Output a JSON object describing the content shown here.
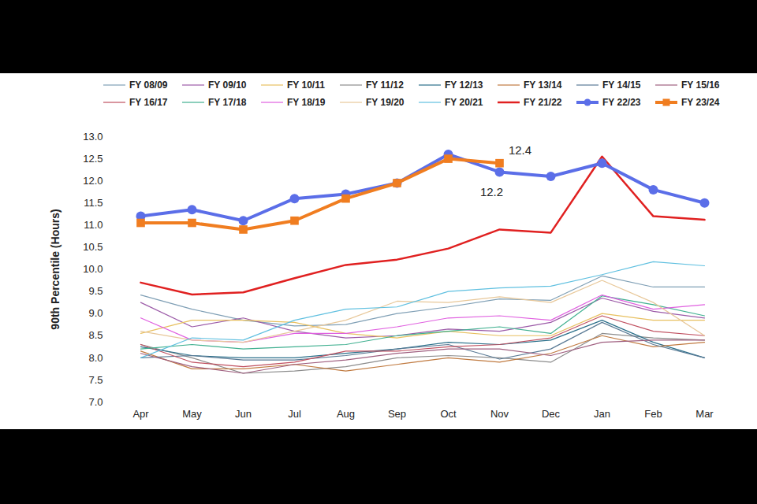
{
  "chart_data": {
    "type": "line",
    "y_label": "90th Percentile (Hours)",
    "categories": [
      "Apr",
      "May",
      "Jun",
      "Jul",
      "Aug",
      "Sep",
      "Oct",
      "Nov",
      "Dec",
      "Jan",
      "Feb",
      "Mar"
    ],
    "ylim": [
      7.0,
      13.0
    ],
    "yticks": [
      {
        "value": 7.0,
        "label": "7.0"
      },
      {
        "value": 7.5,
        "label": "7.5"
      },
      {
        "value": 8.0,
        "label": "8.0"
      },
      {
        "value": 8.5,
        "label": "8.5"
      },
      {
        "value": 9.0,
        "label": "9.0"
      },
      {
        "value": 9.5,
        "label": "9.5"
      },
      {
        "value": 10.0,
        "label": "10.0"
      },
      {
        "value": 10.5,
        "label": "10.5"
      },
      {
        "value": 11.0,
        "label": "11.0"
      },
      {
        "value": 11.5,
        "label": "11.5"
      },
      {
        "value": 12.0,
        "label": "12.0"
      },
      {
        "value": 12.5,
        "label": "12.5"
      },
      {
        "value": 13.0,
        "label": "13.0"
      }
    ],
    "grid": false,
    "legend": "top",
    "series": [
      {
        "name": "FY 08/09",
        "color": "#7f9fb5",
        "line_style": "solid",
        "values": [
          9.42,
          9.1,
          8.85,
          8.72,
          8.75,
          9.0,
          9.15,
          9.33,
          9.3,
          9.85,
          9.6,
          9.6
        ]
      },
      {
        "name": "FY 09/10",
        "color": "#9c5ba8",
        "line_style": "solid",
        "values": [
          9.25,
          8.7,
          8.9,
          8.6,
          8.45,
          8.5,
          8.65,
          8.6,
          8.8,
          9.35,
          9.05,
          8.9
        ]
      },
      {
        "name": "FY 10/11",
        "color": "#e8c060",
        "line_style": "solid",
        "values": [
          8.55,
          8.85,
          8.85,
          8.8,
          8.55,
          8.45,
          8.6,
          8.5,
          8.5,
          9.0,
          8.85,
          8.85
        ]
      },
      {
        "name": "FY 11/12",
        "color": "#8c8c8c",
        "line_style": "solid",
        "values": [
          8.3,
          8.0,
          7.65,
          7.7,
          7.8,
          8.0,
          8.05,
          8.0,
          7.9,
          8.55,
          8.45,
          8.4
        ]
      },
      {
        "name": "FY 12/13",
        "color": "#2a6f8a",
        "line_style": "solid",
        "values": [
          8.25,
          8.05,
          8.0,
          8.0,
          8.1,
          8.2,
          8.35,
          8.3,
          8.4,
          8.85,
          8.35,
          8.0
        ]
      },
      {
        "name": "FY 13/14",
        "color": "#c07a40",
        "line_style": "solid",
        "values": [
          8.15,
          7.75,
          7.75,
          7.85,
          7.7,
          7.85,
          8.0,
          7.9,
          8.1,
          8.5,
          8.25,
          8.35
        ]
      },
      {
        "name": "FY 14/15",
        "color": "#5a7a95",
        "line_style": "solid",
        "values": [
          8.0,
          8.05,
          7.95,
          7.95,
          8.05,
          8.2,
          8.3,
          7.97,
          8.2,
          8.8,
          8.3,
          8.0
        ]
      },
      {
        "name": "FY 15/16",
        "color": "#a06080",
        "line_style": "solid",
        "values": [
          8.1,
          7.8,
          7.65,
          7.85,
          7.95,
          8.1,
          8.2,
          8.2,
          8.05,
          8.35,
          8.4,
          8.4
        ]
      },
      {
        "name": "FY 16/17",
        "color": "#c05060",
        "line_style": "solid",
        "values": [
          8.3,
          7.9,
          7.8,
          7.9,
          8.15,
          8.15,
          8.25,
          8.3,
          8.45,
          8.95,
          8.6,
          8.5
        ]
      },
      {
        "name": "FY 17/18",
        "color": "#40b090",
        "line_style": "solid",
        "values": [
          8.2,
          8.3,
          8.2,
          8.25,
          8.3,
          8.5,
          8.6,
          8.7,
          8.55,
          9.4,
          9.2,
          8.95
        ]
      },
      {
        "name": "FY 18/19",
        "color": "#e060e0",
        "line_style": "solid",
        "values": [
          8.9,
          8.4,
          8.35,
          8.55,
          8.55,
          8.7,
          8.9,
          8.95,
          8.85,
          9.42,
          9.1,
          9.2
        ]
      },
      {
        "name": "FY 19/20",
        "color": "#e8c89a",
        "line_style": "solid",
        "values": [
          8.6,
          8.4,
          8.35,
          8.6,
          8.85,
          9.28,
          9.25,
          9.38,
          9.25,
          9.75,
          9.25,
          8.5
        ]
      },
      {
        "name": "FY 20/21",
        "color": "#60c0e0",
        "line_style": "solid",
        "values": [
          8.0,
          8.45,
          8.4,
          8.85,
          9.1,
          9.15,
          9.5,
          9.58,
          9.62,
          9.88,
          10.17,
          10.08
        ]
      },
      {
        "name": "FY 21/22",
        "color": "#e02020",
        "line_style": "thick",
        "values": [
          9.7,
          9.43,
          9.48,
          9.8,
          10.1,
          10.22,
          10.47,
          10.9,
          10.83,
          12.55,
          11.2,
          11.12
        ]
      },
      {
        "name": "FY 22/23",
        "color": "#5b6ee8",
        "line_style": "thick",
        "marker": "circle",
        "values": [
          11.2,
          11.35,
          11.1,
          11.6,
          11.7,
          11.95,
          12.6,
          12.2,
          12.1,
          12.4,
          11.8,
          11.5
        ]
      },
      {
        "name": "FY 23/24",
        "color": "#f07d20",
        "line_style": "thick",
        "marker": "square",
        "values": [
          11.05,
          11.05,
          10.9,
          11.1,
          11.6,
          11.95,
          12.5,
          12.4,
          null,
          null,
          null,
          null
        ]
      }
    ],
    "annotations": [
      {
        "text": "12.4",
        "series": "FY 23/24",
        "category": "Nov"
      },
      {
        "text": "12.2",
        "series": "FY 22/23",
        "category": "Nov"
      }
    ]
  }
}
